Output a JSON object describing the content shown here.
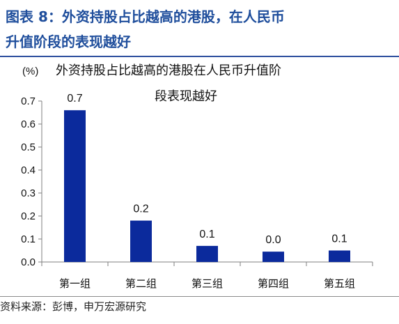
{
  "figure": {
    "title_line1": "图表 8：外资持股占比越高的港股，在人民币",
    "title_line2": "升值阶段的表现越好",
    "source": "资料来源：彭博，申万宏源研究"
  },
  "colors": {
    "title": "#1f4e9c",
    "bar": "#0b2a9c",
    "axis": "#7f7f7f"
  },
  "chart_data": {
    "type": "bar",
    "title_line1": "外资持股占比越高的港股在人民币升值阶",
    "title_line2": "段表现越好",
    "unit_label": "(%)",
    "categories": [
      "第一组",
      "第二组",
      "第三组",
      "第四组",
      "第五组"
    ],
    "values": [
      0.66,
      0.18,
      0.07,
      0.045,
      0.05
    ],
    "data_labels": [
      "0.7",
      "0.2",
      "0.1",
      "0.0",
      "0.1"
    ],
    "ylim": [
      0,
      0.7
    ],
    "yticks": [
      "0.0",
      "0.1",
      "0.2",
      "0.3",
      "0.4",
      "0.5",
      "0.6",
      "0.7"
    ],
    "grid": false,
    "legend": "none"
  }
}
